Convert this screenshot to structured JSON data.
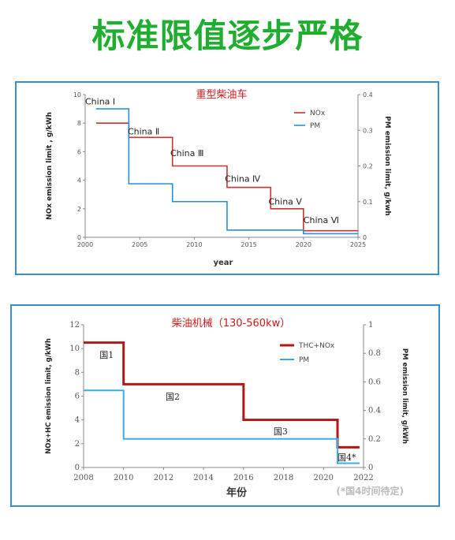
{
  "headline": "标准限值逐步严格",
  "chart_data": [
    {
      "type": "line",
      "title": "重型柴油车",
      "xlabel": "year",
      "ylabel": "NOx emission limit , g/kWh",
      "y2label": "PM emission limit, g/kwh",
      "xlim": [
        2000,
        2025
      ],
      "ylim": [
        0,
        10
      ],
      "y2lim": [
        0,
        0.4
      ],
      "xticks": [
        "2000",
        "2005",
        "2010",
        "2015",
        "2020",
        "2025"
      ],
      "yticks": [
        "0",
        "2",
        "4",
        "6",
        "8",
        "10"
      ],
      "y2ticks": [
        "0",
        "0.1",
        "0.2",
        "0.3",
        "0.4"
      ],
      "legend_position": "top-right",
      "series": [
        {
          "name": "NOx",
          "color": "#cc3333",
          "axis": "left",
          "step": true,
          "x": [
            2001,
            2004,
            2008,
            2013,
            2017,
            2020,
            2025
          ],
          "y": [
            8.0,
            7.0,
            5.0,
            3.5,
            2.0,
            0.46,
            0.46
          ]
        },
        {
          "name": "PM",
          "color": "#2b8fd6",
          "axis": "right",
          "step": true,
          "x": [
            2001,
            2004,
            2008,
            2013,
            2020,
            2025
          ],
          "y": [
            0.36,
            0.15,
            0.1,
            0.02,
            0.01,
            0.01
          ]
        }
      ],
      "annotations": [
        {
          "text": "China Ⅰ",
          "x": 2000.0,
          "y": 9.3
        },
        {
          "text": "China Ⅱ",
          "x": 2003.9,
          "y": 7.2
        },
        {
          "text": "China Ⅲ",
          "x": 2007.8,
          "y": 5.7
        },
        {
          "text": "China Ⅳ",
          "x": 2012.8,
          "y": 3.9
        },
        {
          "text": "China Ⅴ",
          "x": 2016.8,
          "y": 2.3
        },
        {
          "text": "China Ⅵ",
          "x": 2020.0,
          "y": 1.0
        }
      ]
    },
    {
      "type": "line",
      "title": "柴油机械（130-560kw）",
      "xlabel": "年份",
      "ylabel": "NOx+HC emission limit, g/kWh",
      "y2label": "PM emission limit, g/kWh",
      "xlim": [
        2008,
        2022
      ],
      "ylim": [
        0,
        12
      ],
      "y2lim": [
        0,
        1
      ],
      "xticks": [
        "2008",
        "2010",
        "2012",
        "2014",
        "2016",
        "2018",
        "2020",
        "2022"
      ],
      "yticks": [
        "0",
        "2",
        "4",
        "6",
        "8",
        "10",
        "12"
      ],
      "y2ticks": [
        "0",
        "0.2",
        "0.4",
        "0.6",
        "0.8",
        "1"
      ],
      "legend_position": "top-right",
      "series": [
        {
          "name": "THC+NOx",
          "color": "#b01818",
          "axis": "left",
          "step": true,
          "x": [
            2008,
            2010,
            2016,
            2020.7,
            2021.8
          ],
          "y": [
            10.5,
            7.0,
            4.0,
            1.7,
            1.7
          ]
        },
        {
          "name": "PM",
          "color": "#37b0e0",
          "axis": "right",
          "step": true,
          "x": [
            2008,
            2010,
            2020.7,
            2021.8
          ],
          "y": [
            0.54,
            0.2,
            0.03,
            0.03
          ]
        }
      ],
      "annotations": [
        {
          "text": "国1",
          "x": 2008.8,
          "y": 9.2
        },
        {
          "text": "国2",
          "x": 2012.1,
          "y": 5.7
        },
        {
          "text": "国3",
          "x": 2017.5,
          "y": 2.8
        },
        {
          "text": "国4*",
          "x": 2020.7,
          "y": 0.6
        }
      ],
      "note": "(*国4时间待定)"
    }
  ]
}
